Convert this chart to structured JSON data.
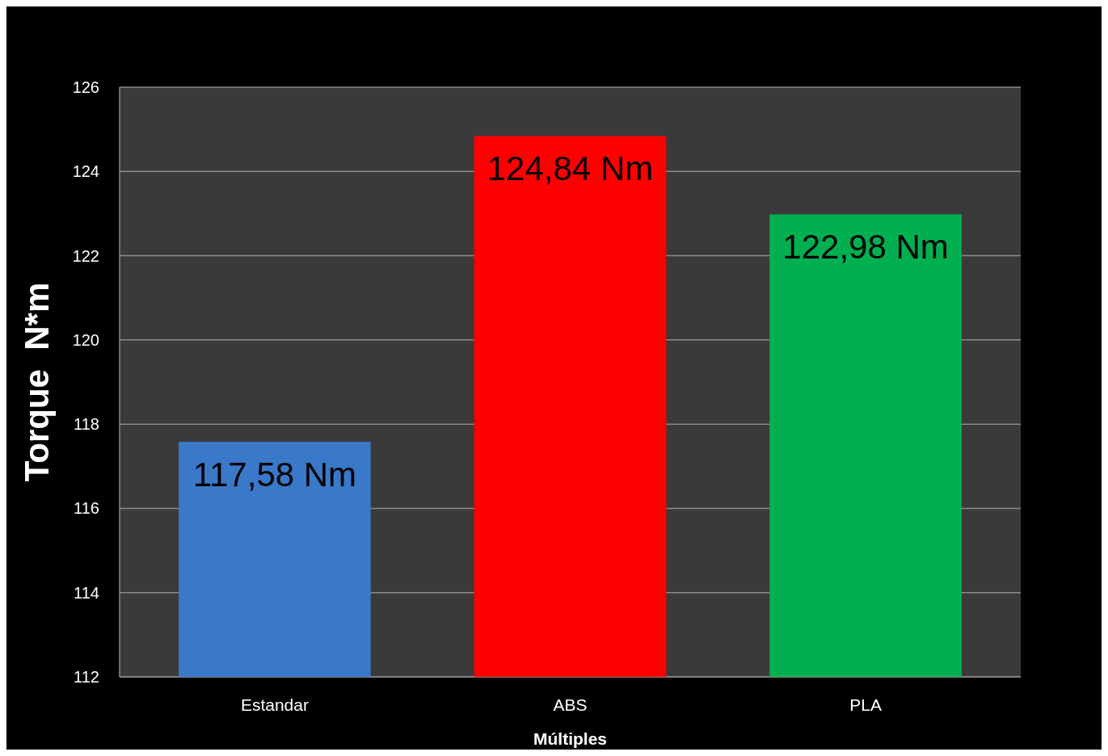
{
  "chart_data": {
    "type": "bar",
    "xlabel": "Múltiples",
    "ylabel": "Torque  N*m",
    "categories": [
      "Estandar",
      "ABS",
      "PLA"
    ],
    "values": [
      117.58,
      124.84,
      122.98
    ],
    "colors": [
      "#3a78c9",
      "#ff0000",
      "#00b050"
    ],
    "value_labels": [
      "117,58 Nm",
      "124,84 Nm",
      "122,98 Nm"
    ],
    "ylim": [
      112,
      126
    ],
    "yticks": [
      112,
      114,
      116,
      118,
      120,
      122,
      124,
      126
    ],
    "grid": "y"
  }
}
